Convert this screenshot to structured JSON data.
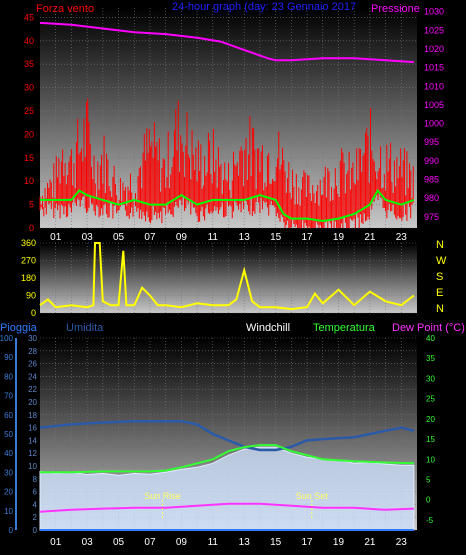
{
  "colors": {
    "wind": "#ff0000",
    "wind_avg": "#00ff00",
    "pressure": "#ff00ff",
    "direction": "#ffff00",
    "rain": "#2f7cff",
    "humidity": "#2b5aa8",
    "windchill": "#ffffff",
    "temperature": "#33ff33",
    "dewpoint": "#ff33ff",
    "title": "#2020ff",
    "axis_left_bottom": "#3b7dd8",
    "axis_left_bottom2": "#2a4fa0",
    "axis_right_bottom": "#33ff33"
  },
  "chart_data": [
    {
      "id": "wind-pressure",
      "type": "line",
      "title": "24-hour graph (day: 23 Gennaio 2017",
      "left_label": "Forza vento",
      "right_label": "Pressione",
      "x_ticks": [
        "01",
        "03",
        "05",
        "07",
        "09",
        "11",
        "13",
        "15",
        "17",
        "19",
        "21",
        "23"
      ],
      "y_left_ticks": [
        0,
        5,
        10,
        15,
        20,
        25,
        30,
        35,
        40,
        45
      ],
      "y_left_range": [
        0,
        47
      ],
      "y_right_ticks": [
        975,
        980,
        985,
        990,
        995,
        1000,
        1005,
        1010,
        1015,
        1020,
        1025,
        1030
      ],
      "y_right_range": [
        972,
        1031
      ],
      "series": [
        {
          "key": "pressure",
          "x": [
            0,
            2,
            4,
            6,
            8,
            10,
            11.5,
            12.5,
            13.5,
            14.5,
            15,
            16,
            18,
            20,
            22,
            23.8
          ],
          "y": [
            1027,
            1026.5,
            1025.5,
            1024.5,
            1024,
            1023,
            1022,
            1020.5,
            1019,
            1017.5,
            1017,
            1017,
            1017.5,
            1017.5,
            1017,
            1016.5
          ]
        },
        {
          "key": "wind_avg",
          "x": [
            0,
            1,
            2,
            2.5,
            3,
            4,
            5,
            6,
            7,
            8,
            9,
            10,
            11,
            12,
            13,
            14,
            15,
            15.5,
            16,
            17,
            18,
            19,
            20,
            21,
            21.5,
            22,
            23,
            23.8
          ],
          "y": [
            6,
            6,
            6,
            8,
            7,
            6,
            5,
            6,
            5,
            5,
            7,
            5,
            6,
            6,
            6,
            7,
            6,
            3,
            2,
            2,
            1.5,
            2,
            3,
            5,
            8,
            6,
            5,
            6
          ]
        },
        {
          "key": "wind_gust",
          "x": [
            0,
            1,
            1.5,
            2,
            3,
            3.5,
            4,
            5,
            6,
            7,
            8,
            8.5,
            9,
            10,
            11,
            12,
            13,
            14,
            15,
            16,
            17,
            18,
            19,
            20,
            21,
            22,
            23,
            23.8
          ],
          "y": [
            10,
            15,
            25,
            20,
            30,
            18,
            22,
            12,
            15,
            25,
            18,
            28,
            30,
            20,
            22,
            15,
            26,
            22,
            24,
            15,
            12,
            14,
            18,
            16,
            26,
            20,
            18,
            15
          ]
        }
      ]
    },
    {
      "id": "wind-direction",
      "type": "line",
      "right_label_letters": [
        "N",
        "W",
        "S",
        "E",
        "N"
      ],
      "y_ticks": [
        0,
        90,
        180,
        270,
        360
      ],
      "y_range": [
        0,
        360
      ],
      "series": [
        {
          "key": "direction",
          "x": [
            0,
            0.5,
            1,
            2,
            3,
            3.4,
            3.5,
            3.8,
            4,
            4.5,
            5,
            5.3,
            5.5,
            6,
            6.5,
            7,
            7.5,
            8,
            9,
            10,
            11,
            12,
            12.5,
            13,
            13.5,
            14,
            15,
            16,
            17,
            17.5,
            18,
            19,
            20,
            21,
            22,
            23,
            23.8
          ],
          "y": [
            40,
            70,
            30,
            40,
            30,
            40,
            360,
            360,
            60,
            40,
            40,
            320,
            40,
            40,
            130,
            90,
            40,
            40,
            30,
            50,
            40,
            40,
            70,
            220,
            60,
            30,
            30,
            20,
            30,
            100,
            50,
            120,
            40,
            110,
            60,
            40,
            90
          ]
        }
      ]
    },
    {
      "id": "temp-humidity",
      "type": "line",
      "labels": {
        "rain": "Pioggia",
        "humidity": "Umidita",
        "windchill": "Windchill",
        "temperature": "Temperatura",
        "dewpoint": "Dew Point (°C)"
      },
      "annotations": {
        "sunrise": "Sun Rise",
        "sunset": "Sun Set",
        "sunrise_hour": 7.8,
        "sunset_hour": 17.3
      },
      "y_outer_ticks": [
        0,
        10,
        20,
        30,
        40,
        50,
        60,
        70,
        80,
        90,
        100
      ],
      "y_outer_range": [
        0,
        100
      ],
      "y_inner_ticks": [
        0,
        2,
        4,
        6,
        8,
        10,
        12,
        14,
        16,
        18,
        20,
        22,
        24,
        26,
        28,
        30
      ],
      "y_inner_range": [
        0,
        30
      ],
      "y_right_ticks": [
        -5,
        0,
        5,
        10,
        15,
        20,
        25,
        30,
        35,
        40
      ],
      "y_right_range": [
        -7.5,
        40
      ],
      "series": [
        {
          "key": "humidity",
          "x": [
            0,
            2,
            4,
            6,
            8,
            9,
            10,
            11,
            12,
            13,
            14,
            15,
            16,
            17,
            18,
            20,
            22,
            23,
            23.8
          ],
          "y": [
            16,
            16.5,
            16.8,
            17,
            17,
            17,
            16.5,
            15,
            14,
            13,
            12.5,
            12.5,
            13,
            14,
            14.2,
            14.5,
            15.5,
            16,
            15.5
          ]
        },
        {
          "key": "temperature",
          "x": [
            0,
            2,
            4,
            6,
            7,
            8,
            9,
            10,
            11,
            12,
            13,
            14,
            15,
            16,
            17,
            18,
            20,
            22,
            23.8
          ],
          "y": [
            6.8,
            6.8,
            7,
            7,
            7,
            7.2,
            8,
            9,
            10,
            12,
            13,
            13.5,
            13.5,
            12,
            11,
            10,
            9.5,
            9.2,
            9
          ]
        },
        {
          "key": "windchill",
          "x": [
            0,
            1,
            2,
            3,
            4,
            5,
            6,
            7,
            8,
            9,
            10,
            11,
            12,
            13,
            14,
            15,
            16,
            17,
            18,
            19,
            20,
            21,
            22,
            23,
            23.8
          ],
          "y": [
            7,
            6.5,
            6.8,
            6.2,
            6.5,
            6,
            6.5,
            6.3,
            6.8,
            7.5,
            8,
            9,
            11,
            12.5,
            13,
            13,
            11.5,
            10.5,
            10,
            9.8,
            9,
            9.2,
            8.8,
            8.5,
            8.5
          ]
        },
        {
          "key": "dewpoint",
          "x": [
            0,
            2,
            4,
            6,
            8,
            10,
            12,
            14,
            16,
            18,
            20,
            22,
            23.8
          ],
          "y": [
            -3,
            -2.5,
            -2.2,
            -2,
            -2,
            -1.5,
            -1,
            -1,
            -1.5,
            -2,
            -2,
            -2.5,
            -2.2
          ]
        },
        {
          "key": "rain",
          "x": [
            0,
            23.8
          ],
          "y": [
            0,
            0
          ]
        }
      ]
    }
  ]
}
